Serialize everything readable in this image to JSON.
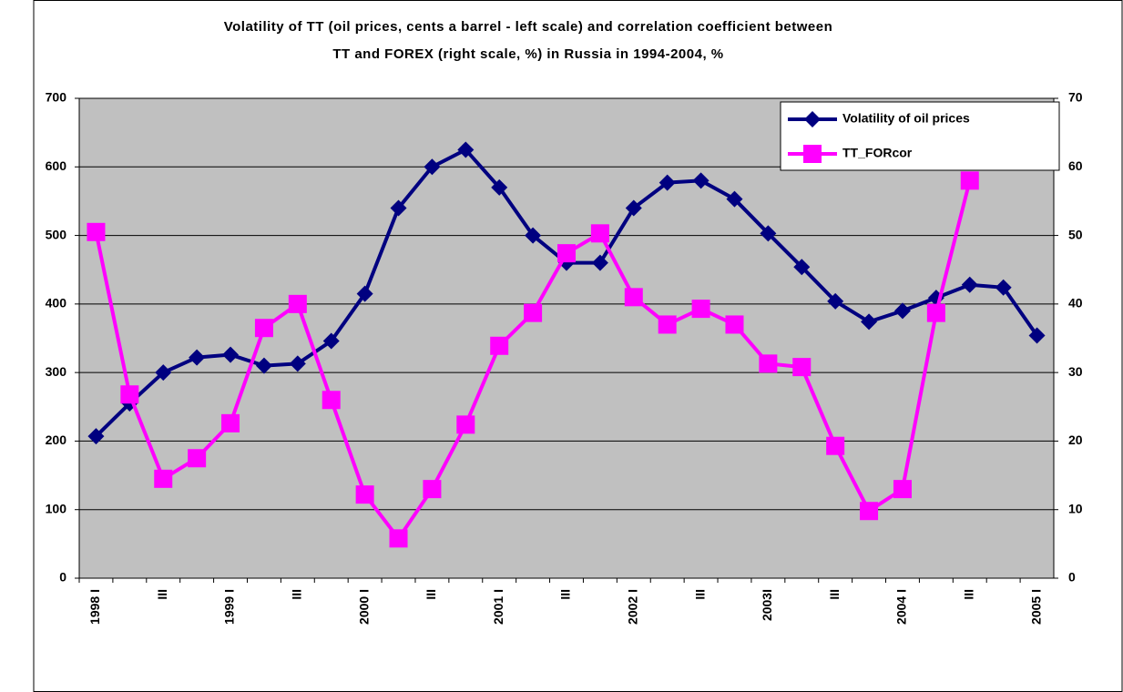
{
  "chart_data": {
    "type": "line",
    "title": [
      "Volatility of TT (oil prices, cents a barrel - left scale) and correlation coefficient between",
      "TT and FOREX (right scale, %)  in Russia in 1994-2004,  %"
    ],
    "categories": [
      "1998 I",
      null,
      "III",
      null,
      "1999 I",
      null,
      "III",
      null,
      "2000 I",
      null,
      "III",
      null,
      "2001 I",
      null,
      "III",
      null,
      "2002 I",
      null,
      "III",
      null,
      "2003I",
      null,
      "III",
      null,
      "2004 I",
      null,
      "III",
      null,
      "2005 I"
    ],
    "series": [
      {
        "name": "Volatility of oil prices",
        "color": "#000080",
        "marker": "diamond",
        "values": [
          207,
          255,
          300,
          322,
          326,
          310,
          313,
          346,
          415,
          540,
          600,
          625,
          570,
          500,
          460,
          460,
          540,
          577,
          580,
          553,
          503,
          454,
          404,
          374,
          390,
          409,
          428,
          424,
          354
        ]
      },
      {
        "name": "TT_FORcor",
        "color": "#ff00ff",
        "marker": "square",
        "axis": "y2",
        "values": [
          50.5,
          26.8,
          14.5,
          17.5,
          22.6,
          36.5,
          40,
          26,
          12.2,
          5.8,
          13,
          22.4,
          33.9,
          38.7,
          47.4,
          50.3,
          41,
          37,
          39.3,
          37,
          31.3,
          30.8,
          19.3,
          9.8,
          13,
          38.7,
          58,
          null,
          null
        ]
      }
    ],
    "ylim": [
      0,
      700
    ],
    "yticks": [
      0,
      100,
      200,
      300,
      400,
      500,
      600,
      700
    ],
    "y2lim": [
      0,
      70
    ],
    "y2ticks": [
      0,
      10,
      20,
      30,
      40,
      50,
      60,
      70
    ],
    "grid": true,
    "legend": "top-right"
  }
}
